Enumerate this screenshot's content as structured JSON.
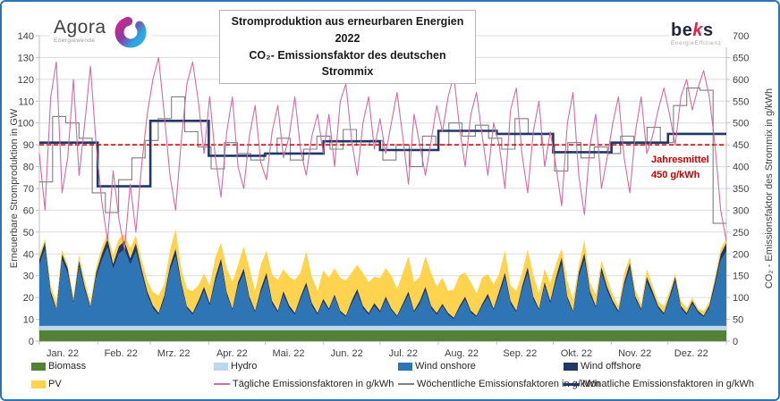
{
  "frame": {
    "border_color": "#2e75b6",
    "background": "#ffffff"
  },
  "header": {
    "agora": {
      "name": "Agora",
      "subtitle": "Energiewende"
    },
    "beks": {
      "prefix": "be",
      "k": "k",
      "suffix": "s",
      "subtitle": "EnergieEffizienz"
    },
    "title_line1": "Stromproduktion aus erneurbaren Energien 2022",
    "title_line2": "CO₂- Emissionsfaktor des deutschen Strommix"
  },
  "annotation": {
    "line1": "Jahresmittel",
    "line2": "450 g/kWh"
  },
  "legend": {
    "rows": [
      [
        {
          "label": "Biomass",
          "color": "#538135",
          "swatch": "area"
        },
        {
          "label": "Hydro",
          "color": "#bdd7ee",
          "swatch": "area"
        },
        {
          "label": "Wind onshore",
          "color": "#2e75b6",
          "swatch": "area"
        },
        {
          "label": "Wind offshore",
          "color": "#1f3864",
          "swatch": "area"
        }
      ],
      [
        {
          "label": "PV",
          "color": "#ffd34d",
          "swatch": "area"
        },
        {
          "label": "Tägliche Emissionsfaktoren in g/kWh",
          "color": "#cf6da4",
          "swatch": "line"
        },
        {
          "label": "Wöchentliche Emissionsfaktoren in g/kWh",
          "color": "#7f7f7f",
          "swatch": "line"
        },
        {
          "label": "Monatliche Emissionsfaktoren in g/kWh",
          "color": "#1f3864",
          "swatch": "line-thick"
        }
      ]
    ]
  },
  "chart_data": {
    "type": "area",
    "subtype": "stacked-area with daily/weekly/monthly emission-factor lines",
    "title": "Stromproduktion aus erneurbaren Energien 2022 / CO₂- Emissionsfaktor des deutschen Strommix",
    "grid": true,
    "x_axis": {
      "months": [
        "Jan. 22",
        "Feb. 22",
        "Mrz. 22",
        "Apr. 22",
        "Mai. 22",
        "Jun. 22",
        "Jul. 22",
        "Aug. 22",
        "Sep. 22",
        "Okt. 22",
        "Nov. 22",
        "Dez. 22"
      ],
      "days_in_month": [
        31,
        28,
        31,
        30,
        31,
        30,
        31,
        31,
        30,
        31,
        30,
        31
      ],
      "total_days": 365
    },
    "left_axis": {
      "label": "Erneuerbare Stromproduktion in GW",
      "min": 0,
      "max": 140,
      "step": 10,
      "unit": "GW"
    },
    "right_axis": {
      "label": "CO₂ - Emissionsfaktor des Strommix in g/kWh",
      "min": 0,
      "max": 700,
      "step": 50,
      "unit": "g/kWh"
    },
    "sample_interval_days": 3,
    "stacked_series_gw": [
      {
        "name": "Biomass",
        "color": "#538135",
        "values": 5
      },
      {
        "name": "Hydro",
        "color": "#bdd7ee",
        "values": 2
      },
      {
        "name": "Wind onshore",
        "color": "#2e75b6",
        "values": [
          28,
          35,
          14,
          7,
          30,
          24,
          10,
          27,
          16,
          8,
          22,
          30,
          36,
          26,
          33,
          35,
          28,
          34,
          24,
          14,
          8,
          5,
          12,
          25,
          32,
          18,
          8,
          5,
          10,
          16,
          9,
          20,
          28,
          14,
          7,
          18,
          24,
          12,
          6,
          15,
          22,
          10,
          6,
          14,
          8,
          5,
          12,
          18,
          9,
          5,
          11,
          7,
          13,
          6,
          4,
          10,
          15,
          8,
          5,
          9,
          6,
          12,
          7,
          4,
          9,
          14,
          6,
          10,
          16,
          8,
          5,
          9,
          5,
          3,
          8,
          12,
          6,
          4,
          9,
          13,
          7,
          14,
          22,
          10,
          6,
          16,
          24,
          12,
          7,
          18,
          10,
          20,
          28,
          12,
          6,
          22,
          30,
          14,
          8,
          24,
          16,
          10,
          6,
          18,
          26,
          12,
          7,
          20,
          14,
          8,
          5,
          12,
          20,
          8,
          5,
          10,
          6,
          4,
          8,
          18,
          30,
          34
        ]
      },
      {
        "name": "Wind offshore",
        "color": "#1f3864",
        "values": [
          2.5,
          3.5,
          2,
          1,
          3,
          2.5,
          1.5,
          3,
          2,
          1,
          2.5,
          3,
          4,
          2.5,
          3.5,
          4,
          3,
          4,
          2.5,
          2,
          1.5,
          1,
          2,
          2.5,
          3.5,
          2,
          1,
          1,
          1.5,
          2,
          1.5,
          2.5,
          3,
          1.5,
          1,
          2,
          2.5,
          1.5,
          1,
          2,
          2.5,
          1.5,
          1,
          2,
          1.5,
          1,
          1.5,
          2,
          1.5,
          1,
          1.5,
          1,
          1.5,
          1,
          0.8,
          1.5,
          2,
          1.2,
          1,
          1.5,
          1,
          1.5,
          1,
          0.8,
          1.2,
          1.8,
          1,
          1.5,
          2,
          1.2,
          1,
          1.2,
          1,
          0.8,
          1.2,
          1.5,
          1,
          0.8,
          1.2,
          1.8,
          1,
          2,
          2.5,
          1.5,
          1,
          2,
          3,
          1.5,
          1,
          2.2,
          1.5,
          2.5,
          3.5,
          1.5,
          1,
          2.5,
          3.5,
          2,
          1.2,
          3,
          2,
          1.5,
          1,
          2.2,
          3,
          1.5,
          1,
          2.5,
          2,
          1.2,
          1,
          1.8,
          2.5,
          1.2,
          1,
          1.5,
          1,
          0.8,
          1.5,
          2.5,
          3,
          4
        ]
      },
      {
        "name": "PV",
        "color": "#ffd34d",
        "values": [
          2,
          1.5,
          2.5,
          3,
          2,
          1.5,
          2,
          2.5,
          3,
          2,
          2.5,
          3,
          2.5,
          4,
          3.5,
          3,
          4.5,
          3.5,
          4,
          5,
          6,
          8,
          5,
          7,
          9,
          6,
          8,
          10,
          7,
          6,
          8,
          9,
          7,
          11,
          12,
          8,
          10,
          13,
          9,
          11,
          10,
          12,
          14,
          10,
          13,
          15,
          11,
          14,
          12,
          10,
          13,
          14,
          12,
          15,
          16,
          13,
          11,
          15,
          14,
          12,
          15,
          13,
          15,
          12,
          14,
          16,
          13,
          11,
          14,
          15,
          12,
          12,
          10,
          13,
          14,
          11,
          13,
          10,
          12,
          9,
          11,
          8,
          10,
          7,
          9,
          6,
          8,
          10,
          7,
          6,
          8,
          6,
          4,
          7,
          5,
          3,
          6,
          4,
          5,
          3,
          4,
          3,
          2,
          4,
          2.5,
          3,
          2,
          3.5,
          2.5,
          2,
          3,
          2,
          1.5,
          2.5,
          2,
          1.5,
          1,
          2,
          1.5,
          2,
          2.5,
          2
        ]
      }
    ],
    "emission_lines": [
      {
        "name": "Tägliche Emissionsfaktoren in g/kWh",
        "color": "#cf6da4",
        "width": 1.1,
        "mode": "poly",
        "values": [
          430,
          300,
          560,
          640,
          340,
          420,
          600,
          380,
          500,
          630,
          450,
          320,
          230,
          390,
          280,
          210,
          360,
          250,
          400,
          520,
          600,
          650,
          520,
          380,
          300,
          460,
          590,
          640,
          550,
          430,
          560,
          420,
          330,
          480,
          560,
          400,
          350,
          470,
          540,
          410,
          370,
          480,
          540,
          420,
          470,
          560,
          440,
          380,
          470,
          520,
          430,
          520,
          400,
          550,
          590,
          460,
          380,
          500,
          560,
          440,
          510,
          430,
          500,
          570,
          470,
          360,
          520,
          450,
          380,
          460,
          540,
          480,
          560,
          610,
          490,
          400,
          520,
          570,
          470,
          380,
          500,
          450,
          350,
          530,
          580,
          430,
          340,
          480,
          550,
          400,
          480,
          400,
          310,
          500,
          570,
          380,
          290,
          450,
          520,
          350,
          420,
          500,
          560,
          420,
          340,
          480,
          560,
          430,
          470,
          530,
          580,
          520,
          450,
          560,
          600,
          530,
          580,
          620,
          560,
          450,
          300,
          230
        ]
      },
      {
        "name": "Wöchentliche Emissionsfaktoren in g/kWh",
        "color": "#7f7f7f",
        "width": 1.1,
        "mode": "step-week",
        "periods": 52,
        "values": [
          365,
          515,
          500,
          465,
          340,
          295,
          370,
          420,
          460,
          510,
          560,
          480,
          445,
          395,
          455,
          430,
          415,
          430,
          465,
          415,
          440,
          470,
          440,
          485,
          450,
          460,
          415,
          450,
          400,
          470,
          450,
          500,
          470,
          495,
          465,
          440,
          510,
          475,
          450,
          390,
          455,
          420,
          445,
          430,
          470,
          450,
          490,
          455,
          540,
          580,
          575,
          270
        ]
      },
      {
        "name": "Monatliche Emissionsfaktoren in g/kWh",
        "color": "#1f3864",
        "width": 2.6,
        "mode": "step-month",
        "values": [
          455,
          355,
          505,
          425,
          430,
          458,
          438,
          482,
          475,
          433,
          455,
          475
        ]
      }
    ],
    "reference_line": {
      "label": "Jahresmittel 450 g/kWh",
      "value": 450,
      "color": "#c00000",
      "style": "dashed"
    }
  }
}
